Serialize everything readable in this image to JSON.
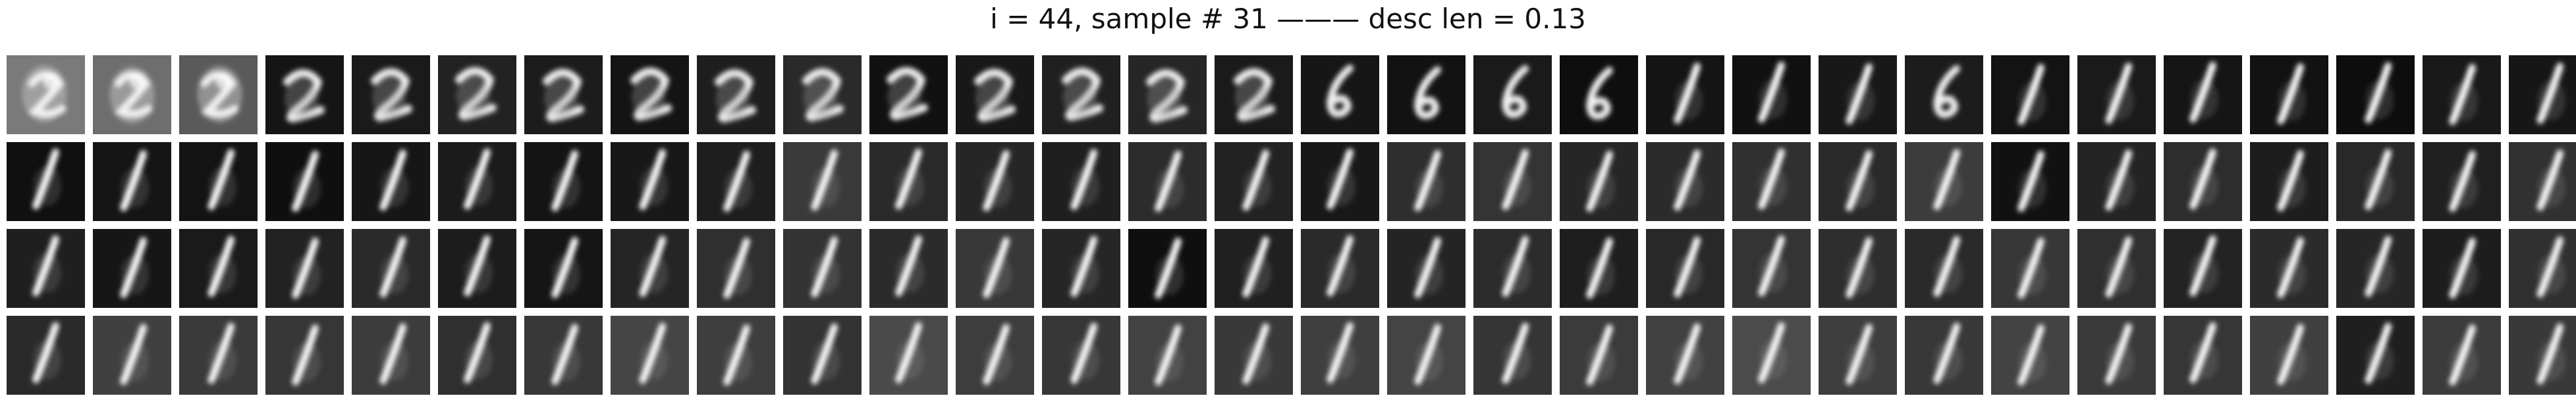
{
  "title": "i = 44, sample # 31 ——— desc len = 0.13",
  "grid": {
    "rows": 4,
    "columns": 30,
    "tiles": [
      {
        "kind": "blob",
        "bg": "#7a7a7a"
      },
      {
        "kind": "blob",
        "bg": "#6e6e6e"
      },
      {
        "kind": "blob",
        "bg": "#5a5a5a"
      },
      {
        "kind": "two",
        "bg": "#151515"
      },
      {
        "kind": "two",
        "bg": "#1a1a1a"
      },
      {
        "kind": "two",
        "bg": "#222222"
      },
      {
        "kind": "two",
        "bg": "#1c1c1c"
      },
      {
        "kind": "two",
        "bg": "#141414"
      },
      {
        "kind": "two",
        "bg": "#1e1e1e"
      },
      {
        "kind": "two",
        "bg": "#2a2a2a"
      },
      {
        "kind": "two",
        "bg": "#111111"
      },
      {
        "kind": "two",
        "bg": "#181818"
      },
      {
        "kind": "two",
        "bg": "#202020"
      },
      {
        "kind": "two",
        "bg": "#262626"
      },
      {
        "kind": "two",
        "bg": "#1a1a1a"
      },
      {
        "kind": "six",
        "bg": "#161616"
      },
      {
        "kind": "six",
        "bg": "#121212"
      },
      {
        "kind": "six",
        "bg": "#1a1a1a"
      },
      {
        "kind": "six",
        "bg": "#0e0e0e"
      },
      {
        "kind": "one",
        "bg": "#141414"
      },
      {
        "kind": "one",
        "bg": "#111111"
      },
      {
        "kind": "one",
        "bg": "#181818"
      },
      {
        "kind": "six",
        "bg": "#1c1c1c"
      },
      {
        "kind": "one",
        "bg": "#131313"
      },
      {
        "kind": "one",
        "bg": "#1a1a1a"
      },
      {
        "kind": "one",
        "bg": "#151515"
      },
      {
        "kind": "one",
        "bg": "#121212"
      },
      {
        "kind": "one",
        "bg": "#0d0d0d"
      },
      {
        "kind": "one",
        "bg": "#191919"
      },
      {
        "kind": "one",
        "bg": "#161616"
      },
      {
        "kind": "one",
        "bg": "#101010"
      },
      {
        "kind": "one",
        "bg": "#151515"
      },
      {
        "kind": "one",
        "bg": "#131313"
      },
      {
        "kind": "one",
        "bg": "#0f0f0f"
      },
      {
        "kind": "one",
        "bg": "#161616"
      },
      {
        "kind": "one",
        "bg": "#1b1b1b"
      },
      {
        "kind": "one",
        "bg": "#141414"
      },
      {
        "kind": "one",
        "bg": "#181818"
      },
      {
        "kind": "one",
        "bg": "#1e1e1e"
      },
      {
        "kind": "one",
        "bg": "#3a3a3a"
      },
      {
        "kind": "one",
        "bg": "#2a2a2a"
      },
      {
        "kind": "one",
        "bg": "#262626"
      },
      {
        "kind": "one",
        "bg": "#1f1f1f"
      },
      {
        "kind": "one",
        "bg": "#2c2c2c"
      },
      {
        "kind": "one",
        "bg": "#222222"
      },
      {
        "kind": "one",
        "bg": "#181818"
      },
      {
        "kind": "one",
        "bg": "#2e2e2e"
      },
      {
        "kind": "one",
        "bg": "#343434"
      },
      {
        "kind": "one",
        "bg": "#262626"
      },
      {
        "kind": "one",
        "bg": "#2b2b2b"
      },
      {
        "kind": "one",
        "bg": "#303030"
      },
      {
        "kind": "one",
        "bg": "#2a2a2a"
      },
      {
        "kind": "one",
        "bg": "#3c3c3c"
      },
      {
        "kind": "one",
        "bg": "#111111"
      },
      {
        "kind": "one",
        "bg": "#242424"
      },
      {
        "kind": "one",
        "bg": "#2d2d2d"
      },
      {
        "kind": "one",
        "bg": "#1d1d1d"
      },
      {
        "kind": "one",
        "bg": "#282828"
      },
      {
        "kind": "one",
        "bg": "#202020"
      },
      {
        "kind": "one",
        "bg": "#313131"
      },
      {
        "kind": "one",
        "bg": "#1f1f1f"
      },
      {
        "kind": "one",
        "bg": "#161616"
      },
      {
        "kind": "one",
        "bg": "#1a1a1a"
      },
      {
        "kind": "one",
        "bg": "#222222"
      },
      {
        "kind": "one",
        "bg": "#2a2a2a"
      },
      {
        "kind": "one",
        "bg": "#1c1c1c"
      },
      {
        "kind": "one",
        "bg": "#151515"
      },
      {
        "kind": "one",
        "bg": "#252525"
      },
      {
        "kind": "one",
        "bg": "#2f2f2f"
      },
      {
        "kind": "one",
        "bg": "#333333"
      },
      {
        "kind": "one",
        "bg": "#2b2b2b"
      },
      {
        "kind": "one",
        "bg": "#383838"
      },
      {
        "kind": "one",
        "bg": "#262626"
      },
      {
        "kind": "one",
        "bg": "#0f0f0f"
      },
      {
        "kind": "one",
        "bg": "#202020"
      },
      {
        "kind": "one",
        "bg": "#2a2a2a"
      },
      {
        "kind": "one",
        "bg": "#242424"
      },
      {
        "kind": "one",
        "bg": "#2c2c2c"
      },
      {
        "kind": "one",
        "bg": "#1e1e1e"
      },
      {
        "kind": "one",
        "bg": "#282828"
      },
      {
        "kind": "one",
        "bg": "#343434"
      },
      {
        "kind": "one",
        "bg": "#2e2e2e"
      },
      {
        "kind": "one",
        "bg": "#2a2a2a"
      },
      {
        "kind": "one",
        "bg": "#373737"
      },
      {
        "kind": "one",
        "bg": "#2f2f2f"
      },
      {
        "kind": "one",
        "bg": "#232323"
      },
      {
        "kind": "one",
        "bg": "#2b2b2b"
      },
      {
        "kind": "one",
        "bg": "#262626"
      },
      {
        "kind": "one",
        "bg": "#1d1d1d"
      },
      {
        "kind": "one",
        "bg": "#303030"
      },
      {
        "kind": "one",
        "bg": "#2a2a2a"
      },
      {
        "kind": "one",
        "bg": "#404040"
      },
      {
        "kind": "one",
        "bg": "#3a3a3a"
      },
      {
        "kind": "one",
        "bg": "#363636"
      },
      {
        "kind": "one",
        "bg": "#3c3c3c"
      },
      {
        "kind": "one",
        "bg": "#2f2f2f"
      },
      {
        "kind": "one",
        "bg": "#383838"
      },
      {
        "kind": "one",
        "bg": "#454545"
      },
      {
        "kind": "one",
        "bg": "#3e3e3e"
      },
      {
        "kind": "one",
        "bg": "#333333"
      },
      {
        "kind": "one",
        "bg": "#4a4a4a"
      },
      {
        "kind": "one",
        "bg": "#3d3d3d"
      },
      {
        "kind": "one",
        "bg": "#373737"
      },
      {
        "kind": "one",
        "bg": "#424242"
      },
      {
        "kind": "one",
        "bg": "#393939"
      },
      {
        "kind": "one",
        "bg": "#3f3f3f"
      },
      {
        "kind": "one",
        "bg": "#444444"
      },
      {
        "kind": "one",
        "bg": "#353535"
      },
      {
        "kind": "one",
        "bg": "#3b3b3b"
      },
      {
        "kind": "one",
        "bg": "#414141"
      },
      {
        "kind": "one",
        "bg": "#4b4b4b"
      },
      {
        "kind": "one",
        "bg": "#3e3e3e"
      },
      {
        "kind": "one",
        "bg": "#383838"
      },
      {
        "kind": "one",
        "bg": "#434343"
      },
      {
        "kind": "one",
        "bg": "#3a3a3a"
      },
      {
        "kind": "one",
        "bg": "#363636"
      },
      {
        "kind": "one",
        "bg": "#404040"
      },
      {
        "kind": "one",
        "bg": "#1f1f1f"
      },
      {
        "kind": "one",
        "bg": "#3c3c3c"
      },
      {
        "kind": "one",
        "bg": "#393939"
      }
    ]
  }
}
